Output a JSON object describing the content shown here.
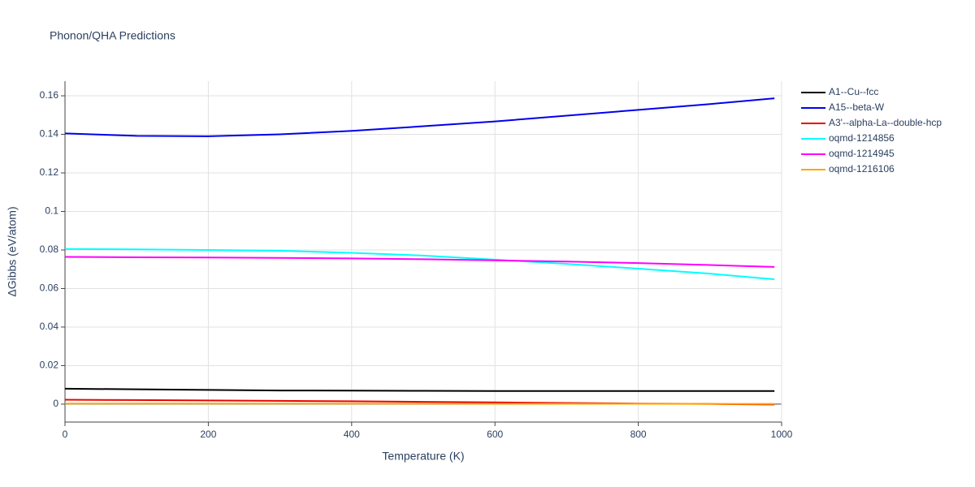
{
  "chart_data": {
    "type": "line",
    "title": "Phonon/QHA Predictions",
    "x_label": "Temperature (K)",
    "y_label": "ΔGibbs (eV/atom)",
    "x": [
      0,
      100,
      200,
      300,
      400,
      500,
      600,
      700,
      800,
      900,
      990
    ],
    "series": [
      {
        "name": "A1--Cu--fcc",
        "color": "#000000",
        "values": [
          0.008,
          0.0077,
          0.0074,
          0.0071,
          0.007,
          0.0069,
          0.0068,
          0.0068,
          0.0068,
          0.0068,
          0.0068
        ]
      },
      {
        "name": "A15--beta-W",
        "color": "#0000ee",
        "values": [
          0.1405,
          0.1392,
          0.139,
          0.14,
          0.1418,
          0.1442,
          0.1467,
          0.1497,
          0.1527,
          0.1557,
          0.1587
        ]
      },
      {
        "name": "A3'--alpha-La--double-hcp",
        "color": "#ee0000",
        "values": [
          0.0023,
          0.0021,
          0.0019,
          0.0017,
          0.0015,
          0.0012,
          0.0009,
          0.0006,
          0.0003,
          0.0001,
          -0.0002
        ]
      },
      {
        "name": "oqmd-1214856",
        "color": "#00ffff",
        "values": [
          0.0805,
          0.0803,
          0.08,
          0.0796,
          0.0785,
          0.0771,
          0.075,
          0.0728,
          0.0703,
          0.0677,
          0.0648
        ]
      },
      {
        "name": "oqmd-1214945",
        "color": "#ff00ff",
        "values": [
          0.0764,
          0.0762,
          0.0761,
          0.0759,
          0.0756,
          0.0752,
          0.0746,
          0.074,
          0.0732,
          0.0722,
          0.0712
        ]
      },
      {
        "name": "oqmd-1216106",
        "color": "#ffa500",
        "values": [
          0.0003,
          0.0003,
          0.0003,
          0.0003,
          0.0003,
          0.0003,
          0.0002,
          0.0002,
          0.0002,
          0.0001,
          0.0001
        ]
      }
    ],
    "xlim": [
      0,
      1000
    ],
    "xticks": [
      0,
      200,
      400,
      600,
      800,
      1000
    ],
    "ylim": [
      -0.0093,
      0.1676
    ],
    "yticks": [
      0,
      0.02,
      0.04,
      0.06,
      0.08,
      0.1,
      0.12,
      0.14,
      0.16
    ],
    "grid": true
  }
}
